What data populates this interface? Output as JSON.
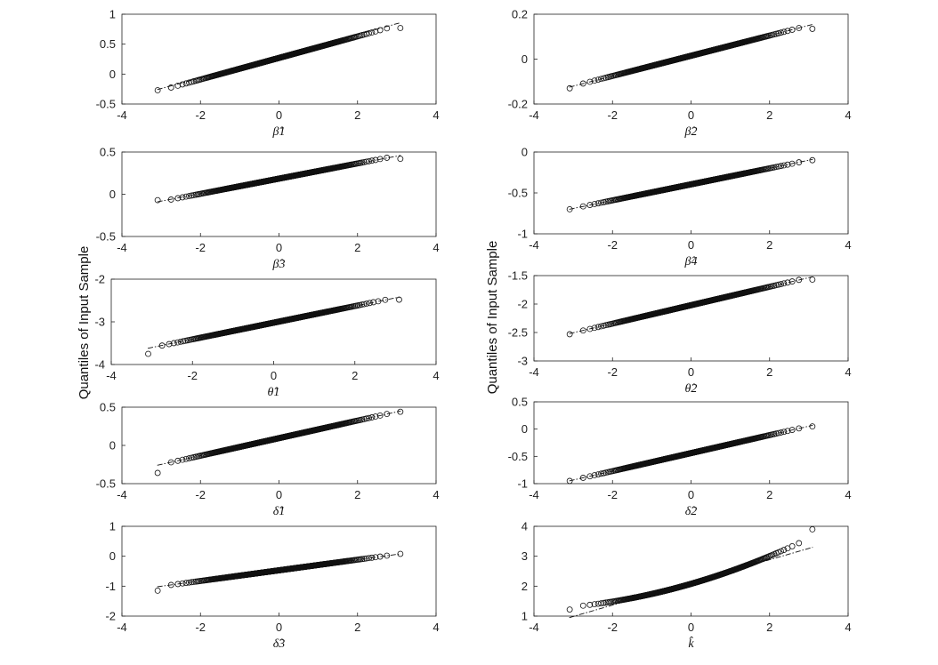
{
  "ylabel": "Quantiles of Input Sample",
  "chart_data": [
    {
      "type": "scatter",
      "xlabel": "β̂1",
      "xlim": [
        -4,
        4
      ],
      "ylim": [
        -0.5,
        1
      ],
      "xticks": [
        "-4",
        "-2",
        "0",
        "2",
        "4"
      ],
      "yticks": [
        "-0.5",
        "0",
        "0.5",
        "1"
      ],
      "ref_line": {
        "x": [
          -3.1,
          3.1
        ],
        "y": [
          -0.26,
          0.86
        ]
      },
      "sample": {
        "mean": 0.27,
        "sd": 0.18,
        "low": -0.27,
        "high": 0.77
      }
    },
    {
      "type": "scatter",
      "xlabel": "β̂2",
      "xlim": [
        -4,
        4
      ],
      "ylim": [
        -0.2,
        0.2
      ],
      "xticks": [
        "-4",
        "-2",
        "0",
        "2",
        "4"
      ],
      "yticks": [
        "-0.2",
        "0",
        "0.2"
      ],
      "ref_line": {
        "x": [
          -3.1,
          3.1
        ],
        "y": [
          -0.125,
          0.155
        ]
      },
      "sample": {
        "mean": 0.015,
        "sd": 0.045,
        "low": -0.13,
        "high": 0.135
      }
    },
    {
      "type": "scatter",
      "xlabel": "β̂3",
      "xlim": [
        -4,
        4
      ],
      "ylim": [
        -0.5,
        0.5
      ],
      "xticks": [
        "-4",
        "-2",
        "0",
        "2",
        "4"
      ],
      "yticks": [
        "-0.5",
        "0",
        "0.5"
      ],
      "ref_line": {
        "x": [
          -3.1,
          3.1
        ],
        "y": [
          -0.09,
          0.46
        ]
      },
      "sample": {
        "mean": 0.185,
        "sd": 0.09,
        "low": -0.07,
        "high": 0.42
      }
    },
    {
      "type": "scatter",
      "xlabel": "β̂4",
      "xlim": [
        -4,
        4
      ],
      "ylim": [
        -1,
        0
      ],
      "xticks": [
        "-4",
        "-2",
        "0",
        "2",
        "4"
      ],
      "yticks": [
        "-1",
        "-0.5",
        "0"
      ],
      "ref_line": {
        "x": [
          -3.1,
          3.1
        ],
        "y": [
          -0.7,
          -0.09
        ]
      },
      "sample": {
        "mean": -0.395,
        "sd": 0.098,
        "low": -0.7,
        "high": -0.1
      }
    },
    {
      "type": "scatter",
      "xlabel": "θ̂1",
      "xlim": [
        -4,
        4
      ],
      "ylim": [
        -4,
        -2
      ],
      "xticks": [
        "-4",
        "-2",
        "0",
        "2",
        "4"
      ],
      "yticks": [
        "-4",
        "-3",
        "-2"
      ],
      "ref_line": {
        "x": [
          -3.1,
          3.1
        ],
        "y": [
          -3.62,
          -2.42
        ]
      },
      "sample": {
        "mean": -3.02,
        "sd": 0.195,
        "low": -3.75,
        "high": -2.48
      }
    },
    {
      "type": "scatter",
      "xlabel": "θ̂2",
      "xlim": [
        -4,
        4
      ],
      "ylim": [
        -3,
        -1.5
      ],
      "xticks": [
        "-4",
        "-2",
        "0",
        "2",
        "4"
      ],
      "yticks": [
        "-3",
        "-2.5",
        "-2",
        "-1.5"
      ],
      "ref_line": {
        "x": [
          -3.1,
          3.1
        ],
        "y": [
          -2.52,
          -1.52
        ]
      },
      "sample": {
        "mean": -2.02,
        "sd": 0.162,
        "low": -2.53,
        "high": -1.57
      }
    },
    {
      "type": "scatter",
      "xlabel": "δ̂1",
      "xlim": [
        -4,
        4
      ],
      "ylim": [
        -0.5,
        0.5
      ],
      "xticks": [
        "-4",
        "-2",
        "0",
        "2",
        "4"
      ],
      "yticks": [
        "-0.5",
        "0",
        "0.5"
      ],
      "ref_line": {
        "x": [
          -3.1,
          3.1
        ],
        "y": [
          -0.26,
          0.45
        ]
      },
      "sample": {
        "mean": 0.095,
        "sd": 0.115,
        "low": -0.36,
        "high": 0.44
      }
    },
    {
      "type": "scatter",
      "xlabel": "δ̂2",
      "xlim": [
        -4,
        4
      ],
      "ylim": [
        -1,
        0.5
      ],
      "xticks": [
        "-4",
        "-2",
        "0",
        "2",
        "4"
      ],
      "yticks": [
        "-1",
        "-0.5",
        "0",
        "0.5"
      ],
      "ref_line": {
        "x": [
          -3.1,
          3.1
        ],
        "y": [
          -0.95,
          0.07
        ]
      },
      "sample": {
        "mean": -0.44,
        "sd": 0.165,
        "low": -0.95,
        "high": 0.05
      }
    },
    {
      "type": "scatter",
      "xlabel": "δ̂3",
      "xlim": [
        -4,
        4
      ],
      "ylim": [
        -2,
        1
      ],
      "xticks": [
        "-4",
        "-2",
        "0",
        "2",
        "4"
      ],
      "yticks": [
        "-2",
        "-1",
        "0",
        "1"
      ],
      "ref_line": {
        "x": [
          -3.1,
          3.1
        ],
        "y": [
          -1.02,
          0.08
        ]
      },
      "sample": {
        "mean": -0.47,
        "sd": 0.178,
        "low": -1.15,
        "high": 0.08
      }
    },
    {
      "type": "scatter",
      "xlabel": "k̂",
      "xlim": [
        -4,
        4
      ],
      "ylim": [
        1,
        4
      ],
      "xticks": [
        "-4",
        "-2",
        "0",
        "2",
        "4"
      ],
      "yticks": [
        "1",
        "2",
        "3",
        "4"
      ],
      "ref_line": {
        "x": [
          -3.1,
          3.1
        ],
        "y": [
          0.95,
          3.3
        ]
      },
      "sample": {
        "mean": 2.12,
        "sd": 0.38,
        "low": 1.22,
        "high": 3.9,
        "skew": 0.22
      }
    }
  ]
}
